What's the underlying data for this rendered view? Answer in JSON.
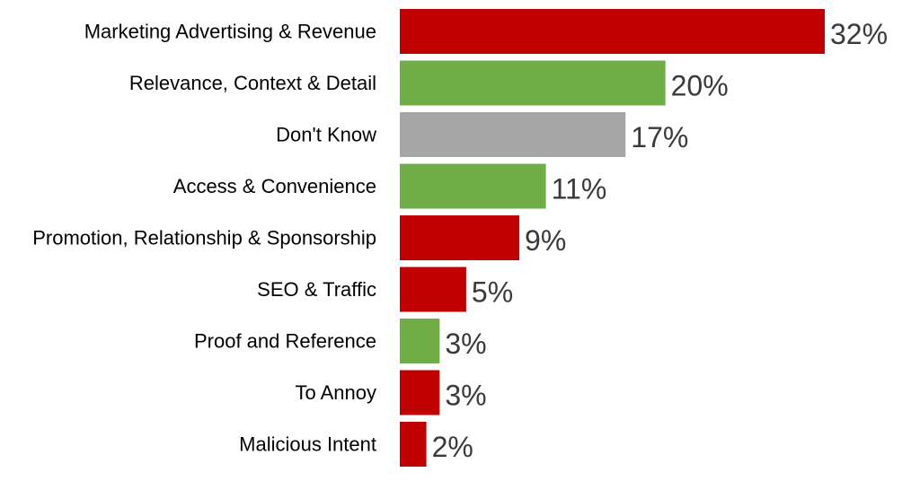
{
  "chart_data": {
    "type": "bar",
    "orientation": "horizontal",
    "title": "",
    "xlabel": "",
    "ylabel": "",
    "xlim": [
      0,
      32
    ],
    "grid": false,
    "legend": "none",
    "value_suffix": "%",
    "categories": [
      "Marketing Advertising & Revenue",
      "Relevance, Context & Detail",
      "Don't Know",
      "Access & Convenience",
      "Promotion, Relationship & Sponsorship",
      "SEO & Traffic",
      "Proof and Reference",
      "To Annoy",
      "Malicious Intent"
    ],
    "values": [
      32,
      20,
      17,
      11,
      9,
      5,
      3,
      3,
      2
    ],
    "value_labels": [
      "32%",
      "20%",
      "17%",
      "11%",
      "9%",
      "5%",
      "3%",
      "3%",
      "2%"
    ],
    "bar_colors": [
      "#c00000",
      "#70ad47",
      "#a6a6a6",
      "#70ad47",
      "#c00000",
      "#c00000",
      "#70ad47",
      "#c00000",
      "#c00000"
    ]
  }
}
